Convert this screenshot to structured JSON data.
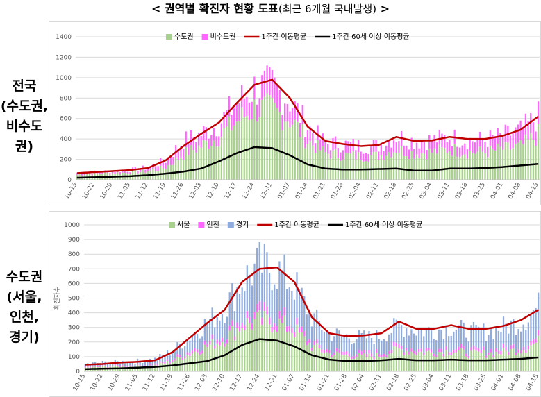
{
  "header": {
    "title_main": "< 권역별 확진자 현황 도표",
    "title_sub": "(최근 6개월 국내발생)",
    "title_end": " >"
  },
  "side_labels": {
    "top": "전국\n(수도권,\n비수도\n권)",
    "bottom": "수도권\n(서울,\n인천,\n경기)"
  },
  "colors": {
    "green": "#a9d18e",
    "magenta": "#ff66ff",
    "blue": "#8faadc",
    "red": "#c00000",
    "black": "#000000",
    "grid": "#d9d9d9"
  },
  "chart_data": [
    {
      "type": "bar",
      "stacked": true,
      "ylim": [
        0,
        1400
      ],
      "yticks": [
        0,
        200,
        400,
        600,
        800,
        1000,
        1200,
        1400
      ],
      "ylabel": "",
      "x_tick_labels": [
        "10-15",
        "10-22",
        "10-29",
        "11-05",
        "11-12",
        "11-19",
        "11-26",
        "12-03",
        "12-10",
        "12-17",
        "12-24",
        "12-31",
        "01-07",
        "01-14",
        "01-21",
        "01-28",
        "02-04",
        "02-11",
        "02-18",
        "02-25",
        "03-04",
        "03-11",
        "03-18",
        "03-25",
        "04-01",
        "04-08",
        "04-15"
      ],
      "legend": [
        "수도권",
        "비수도권",
        "1주간 이동평균",
        "1주간 60세 이상 이동평균"
      ],
      "bar_series": [
        {
          "name": "수도권",
          "color": "#a9d18e",
          "weekly": [
            50,
            60,
            65,
            70,
            85,
            120,
            250,
            330,
            420,
            570,
            700,
            680,
            600,
            380,
            260,
            240,
            230,
            235,
            300,
            260,
            270,
            300,
            270,
            270,
            300,
            320,
            440
          ]
        },
        {
          "name": "비수도권",
          "color": "#ff66ff",
          "weekly": [
            15,
            15,
            20,
            25,
            35,
            70,
            130,
            120,
            130,
            180,
            200,
            230,
            180,
            140,
            100,
            110,
            100,
            100,
            130,
            120,
            120,
            120,
            120,
            120,
            130,
            160,
            180
          ]
        }
      ],
      "line_series": [
        {
          "name": "1주간 이동평균",
          "color": "#c00000",
          "weekly": [
            65,
            75,
            85,
            95,
            115,
            190,
            330,
            450,
            560,
            750,
            930,
            980,
            800,
            520,
            380,
            350,
            330,
            340,
            420,
            380,
            385,
            420,
            400,
            400,
            430,
            490,
            620
          ]
        },
        {
          "name": "1주간 60세 이상 이동평균",
          "color": "#000000",
          "weekly": [
            20,
            25,
            30,
            35,
            45,
            60,
            80,
            110,
            180,
            260,
            320,
            310,
            240,
            150,
            110,
            100,
            100,
            105,
            110,
            90,
            90,
            110,
            110,
            115,
            125,
            140,
            155
          ]
        }
      ]
    },
    {
      "type": "bar",
      "stacked": true,
      "ylim": [
        0,
        1000
      ],
      "yticks": [
        0,
        100,
        200,
        300,
        400,
        500,
        600,
        700,
        800,
        900,
        1000
      ],
      "ylabel": "확진자수",
      "x_tick_labels": [
        "10-15",
        "10-22",
        "10-29",
        "11-05",
        "11-12",
        "11-19",
        "11-26",
        "12-03",
        "12-10",
        "12-17",
        "12-24",
        "12-31",
        "01-07",
        "01-14",
        "01-21",
        "01-28",
        "02-04",
        "02-11",
        "02-18",
        "02-25",
        "03-04",
        "03-11",
        "03-18",
        "03-25",
        "04-01",
        "04-08",
        "04-15"
      ],
      "legend": [
        "서울",
        "인천",
        "경기",
        "1주간 이동평균",
        "1주간 60세 이상 이동평균"
      ],
      "bar_series": [
        {
          "name": "서울",
          "color": "#a9d18e",
          "weekly": [
            25,
            30,
            35,
            35,
            40,
            70,
            120,
            170,
            220,
            320,
            340,
            330,
            280,
            170,
            120,
            110,
            100,
            110,
            150,
            130,
            130,
            140,
            120,
            120,
            130,
            150,
            200
          ]
        },
        {
          "name": "인천",
          "color": "#ff66ff",
          "weekly": [
            5,
            5,
            5,
            5,
            8,
            12,
            20,
            25,
            30,
            40,
            50,
            50,
            40,
            25,
            20,
            20,
            20,
            20,
            25,
            20,
            20,
            25,
            20,
            20,
            25,
            25,
            30
          ]
        },
        {
          "name": "경기",
          "color": "#8faadc",
          "weekly": [
            20,
            25,
            25,
            30,
            35,
            55,
            100,
            140,
            180,
            260,
            330,
            310,
            270,
            180,
            120,
            110,
            110,
            110,
            140,
            130,
            130,
            140,
            130,
            130,
            150,
            160,
            210
          ]
        }
      ],
      "line_series": [
        {
          "name": "1주간 이동평균",
          "color": "#c00000",
          "weekly": [
            45,
            50,
            60,
            65,
            75,
            130,
            230,
            330,
            420,
            610,
            700,
            710,
            610,
            370,
            260,
            240,
            245,
            260,
            340,
            290,
            290,
            315,
            290,
            290,
            310,
            350,
            420
          ]
        },
        {
          "name": "1주간 60세 이상 이동평균",
          "color": "#000000",
          "weekly": [
            15,
            18,
            20,
            25,
            30,
            40,
            55,
            70,
            110,
            180,
            220,
            210,
            170,
            110,
            80,
            70,
            70,
            75,
            85,
            75,
            75,
            80,
            75,
            75,
            80,
            85,
            95
          ]
        }
      ]
    }
  ]
}
